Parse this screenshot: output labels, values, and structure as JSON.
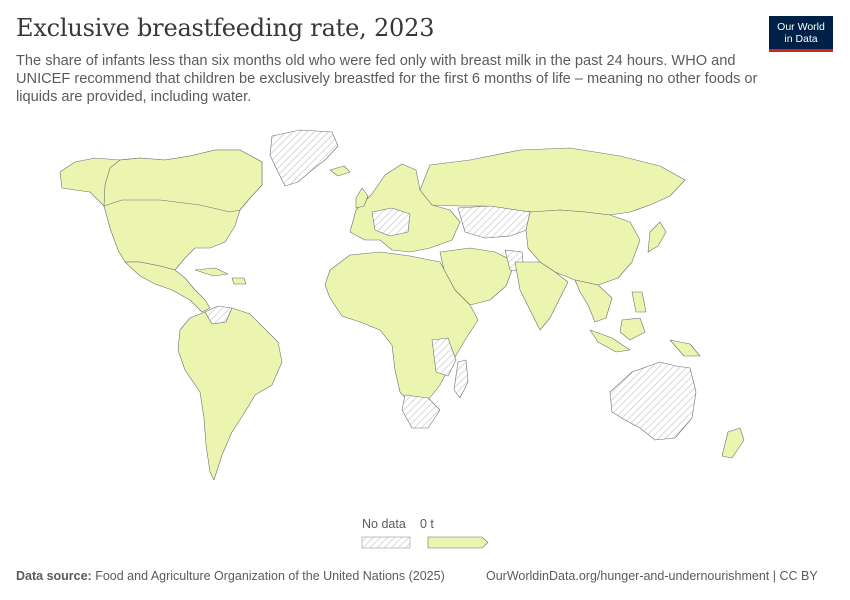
{
  "header": {
    "title": "Exclusive breastfeeding rate, 2023",
    "subtitle": "The share of infants less than six months old who were fed only with breast milk in the past 24 hours. WHO and UNICEF recommend that children be exclusively breastfed for the first 6 months of life – meaning no other foods or liquids are provided, including water."
  },
  "logo": {
    "line1": "Our World",
    "line2": "in Data"
  },
  "legend": {
    "no_data_label": "No data",
    "value_label": "0 t"
  },
  "colors": {
    "data_fill": "#ecf5b0",
    "border": "#6e6e6e",
    "no_data_hatch": "#cfcfcf",
    "logo_bg": "#002147",
    "logo_accent": "#ce261e"
  },
  "footer": {
    "source_label": "Data source:",
    "source_text": "Food and Agriculture Organization of the United Nations (2025)",
    "url": "OurWorldinData.org/hunger-and-undernourishment | CC BY"
  }
}
